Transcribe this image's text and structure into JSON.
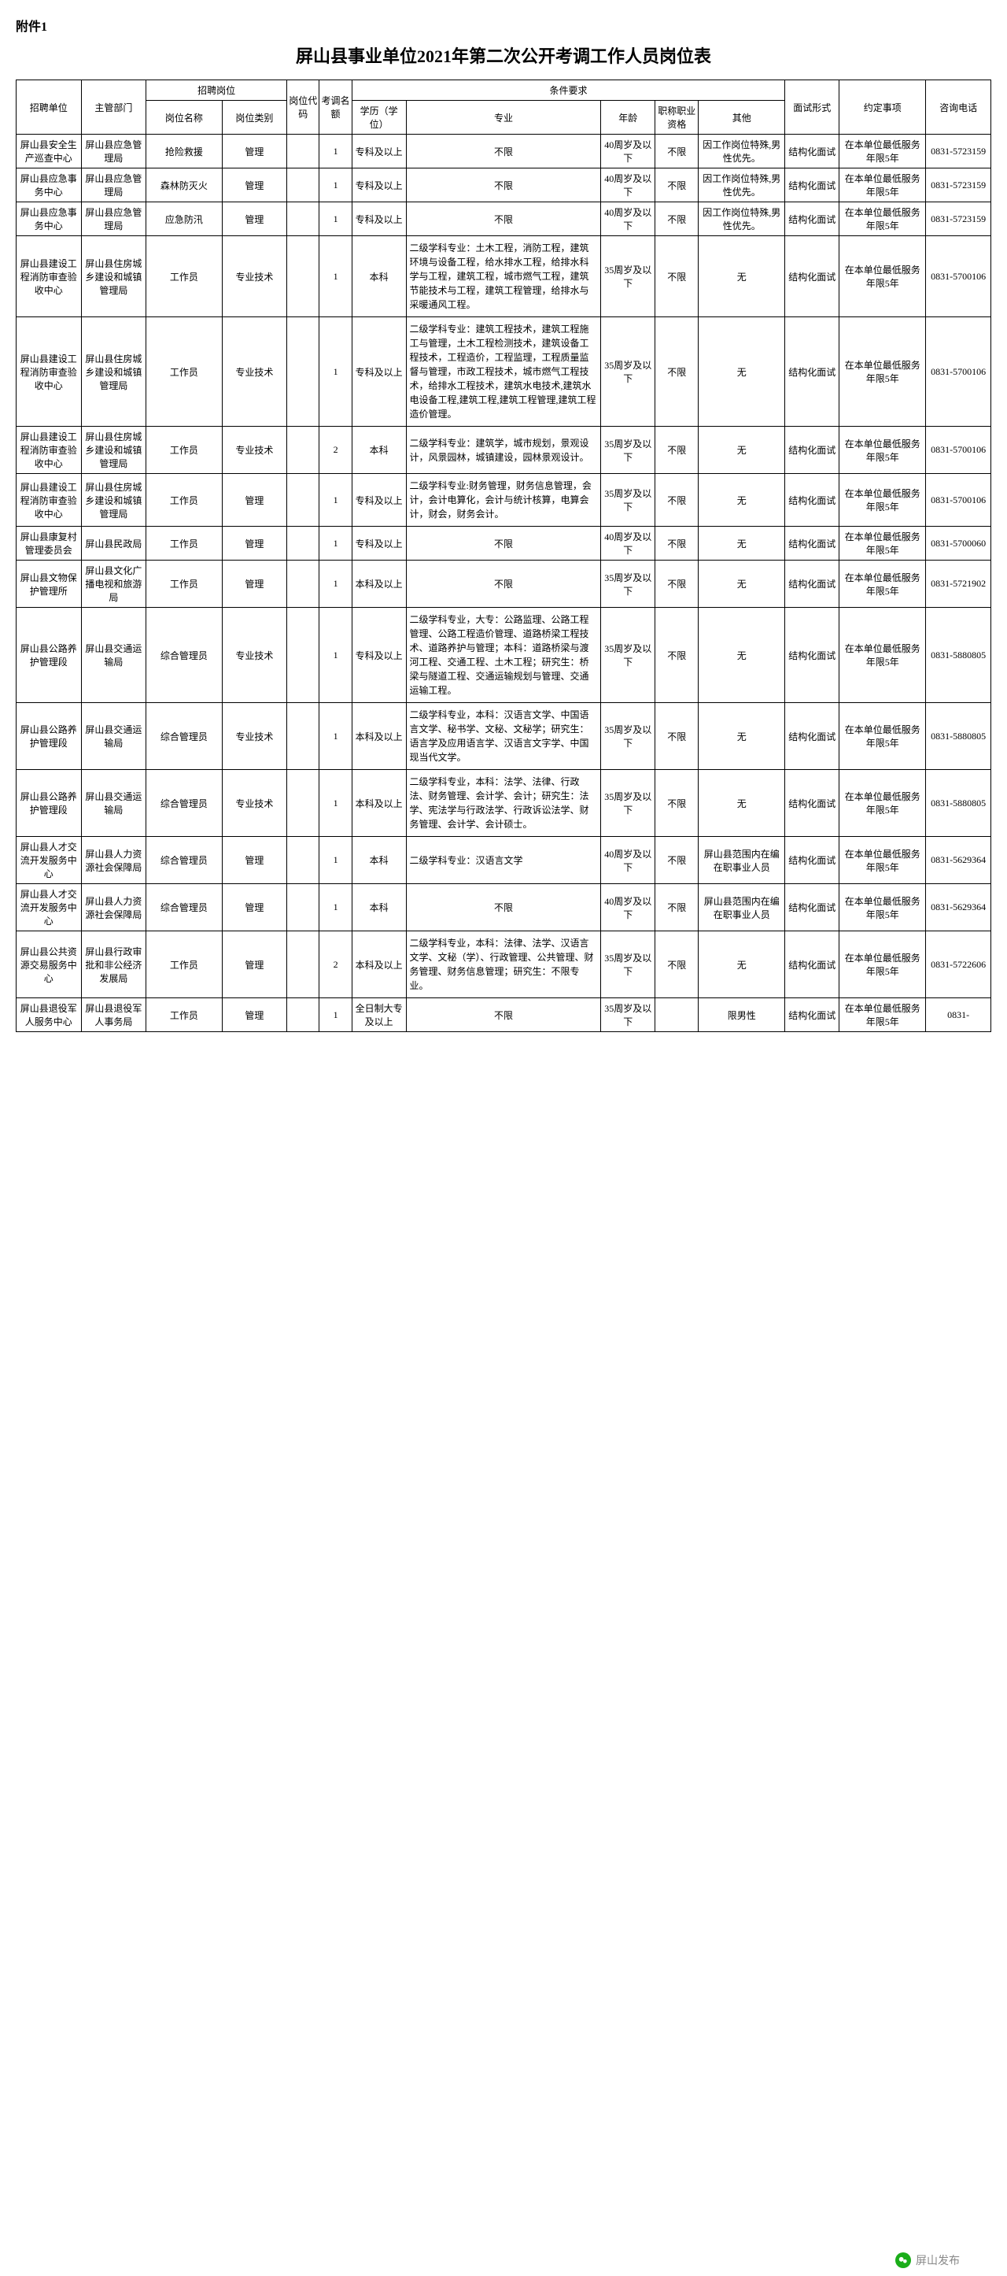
{
  "attachment_label": "附件1",
  "title": "屏山县事业单位2021年第二次公开考调工作人员岗位表",
  "headers": {
    "unit": "招聘单位",
    "dept": "主管部门",
    "recruit": "招聘岗位",
    "posname": "岗位名称",
    "postype": "岗位类别",
    "poscode": "岗位代码",
    "quota": "考调名额",
    "req": "条件要求",
    "edu": "学历（学位）",
    "major": "专业",
    "age": "年龄",
    "title": "职称职业资格",
    "other": "其他",
    "interview": "面试形式",
    "agree": "约定事项",
    "phone": "咨询电话"
  },
  "rows": [
    {
      "unit": "屏山县安全生产巡查中心",
      "dept": "屏山县应急管理局",
      "posname": "抢险救援",
      "postype": "管理",
      "poscode": "",
      "quota": "1",
      "edu": "专科及以上",
      "major": "不限",
      "age": "40周岁及以下",
      "title": "不限",
      "other": "因工作岗位特殊,男性优先。",
      "interview": "结构化面试",
      "agree": "在本单位最低服务年限5年",
      "phone": "0831-5723159"
    },
    {
      "unit": "屏山县应急事务中心",
      "dept": "屏山县应急管理局",
      "posname": "森林防灭火",
      "postype": "管理",
      "poscode": "",
      "quota": "1",
      "edu": "专科及以上",
      "major": "不限",
      "age": "40周岁及以下",
      "title": "不限",
      "other": "因工作岗位特殊,男性优先。",
      "interview": "结构化面试",
      "agree": "在本单位最低服务年限5年",
      "phone": "0831-5723159"
    },
    {
      "unit": "屏山县应急事务中心",
      "dept": "屏山县应急管理局",
      "posname": "应急防汛",
      "postype": "管理",
      "poscode": "",
      "quota": "1",
      "edu": "专科及以上",
      "major": "不限",
      "age": "40周岁及以下",
      "title": "不限",
      "other": "因工作岗位特殊,男性优先。",
      "interview": "结构化面试",
      "agree": "在本单位最低服务年限5年",
      "phone": "0831-5723159"
    },
    {
      "unit": "屏山县建设工程消防审查验收中心",
      "dept": "屏山县住房城乡建设和城镇管理局",
      "posname": "工作员",
      "postype": "专业技术",
      "poscode": "",
      "quota": "1",
      "edu": "本科",
      "major": "二级学科专业：土木工程，消防工程，建筑环境与设备工程，给水排水工程，给排水科学与工程，建筑工程，城市燃气工程，建筑节能技术与工程，建筑工程管理，给排水与采暖通风工程。",
      "age": "35周岁及以下",
      "title": "不限",
      "other": "无",
      "interview": "结构化面试",
      "agree": "在本单位最低服务年限5年",
      "phone": "0831-5700106"
    },
    {
      "unit": "屏山县建设工程消防审查验收中心",
      "dept": "屏山县住房城乡建设和城镇管理局",
      "posname": "工作员",
      "postype": "专业技术",
      "poscode": "",
      "quota": "1",
      "edu": "专科及以上",
      "major": "二级学科专业：建筑工程技术，建筑工程施工与管理，土木工程检测技术，建筑设备工程技术，工程造价，工程监理，工程质量监督与管理，市政工程技术，城市燃气工程技术，给排水工程技术，建筑水电技术,建筑水电设备工程,建筑工程,建筑工程管理,建筑工程造价管理。",
      "age": "35周岁及以下",
      "title": "不限",
      "other": "无",
      "interview": "结构化面试",
      "agree": "在本单位最低服务年限5年",
      "phone": "0831-5700106"
    },
    {
      "unit": "屏山县建设工程消防审查验收中心",
      "dept": "屏山县住房城乡建设和城镇管理局",
      "posname": "工作员",
      "postype": "专业技术",
      "poscode": "",
      "quota": "2",
      "edu": "本科",
      "major": "二级学科专业：建筑学，城市规划，景观设计，风景园林，城镇建设，园林景观设计。",
      "age": "35周岁及以下",
      "title": "不限",
      "other": "无",
      "interview": "结构化面试",
      "agree": "在本单位最低服务年限5年",
      "phone": "0831-5700106"
    },
    {
      "unit": "屏山县建设工程消防审查验收中心",
      "dept": "屏山县住房城乡建设和城镇管理局",
      "posname": "工作员",
      "postype": "管理",
      "poscode": "",
      "quota": "1",
      "edu": "专科及以上",
      "major": "二级学科专业:财务管理，财务信息管理，会计，会计电算化，会计与统计核算，电算会计，财会，财务会计。",
      "age": "35周岁及以下",
      "title": "不限",
      "other": "无",
      "interview": "结构化面试",
      "agree": "在本单位最低服务年限5年",
      "phone": "0831-5700106"
    },
    {
      "unit": "屏山县康复村管理委员会",
      "dept": "屏山县民政局",
      "posname": "工作员",
      "postype": "管理",
      "poscode": "",
      "quota": "1",
      "edu": "专科及以上",
      "major": "不限",
      "age": "40周岁及以下",
      "title": "不限",
      "other": "无",
      "interview": "结构化面试",
      "agree": "在本单位最低服务年限5年",
      "phone": "0831-5700060"
    },
    {
      "unit": "屏山县文物保护管理所",
      "dept": "屏山县文化广播电视和旅游局",
      "posname": "工作员",
      "postype": "管理",
      "poscode": "",
      "quota": "1",
      "edu": "本科及以上",
      "major": "不限",
      "age": "35周岁及以下",
      "title": "不限",
      "other": "无",
      "interview": "结构化面试",
      "agree": "在本单位最低服务年限5年",
      "phone": "0831-5721902"
    },
    {
      "unit": "屏山县公路养护管理段",
      "dept": "屏山县交通运输局",
      "posname": "综合管理员",
      "postype": "专业技术",
      "poscode": "",
      "quota": "1",
      "edu": "专科及以上",
      "major": "二级学科专业，大专：公路监理、公路工程管理、公路工程造价管理、道路桥梁工程技术、道路养护与管理；本科：道路桥梁与渡河工程、交通工程、土木工程；研究生：桥梁与隧道工程、交通运输规划与管理、交通运输工程。",
      "age": "35周岁及以下",
      "title": "不限",
      "other": "无",
      "interview": "结构化面试",
      "agree": "在本单位最低服务年限5年",
      "phone": "0831-5880805"
    },
    {
      "unit": "屏山县公路养护管理段",
      "dept": "屏山县交通运输局",
      "posname": "综合管理员",
      "postype": "专业技术",
      "poscode": "",
      "quota": "1",
      "edu": "本科及以上",
      "major": "二级学科专业，本科：汉语言文学、中国语言文学、秘书学、文秘、文秘学；研究生：语言学及应用语言学、汉语言文字学、中国现当代文学。",
      "age": "35周岁及以下",
      "title": "不限",
      "other": "无",
      "interview": "结构化面试",
      "agree": "在本单位最低服务年限5年",
      "phone": "0831-5880805"
    },
    {
      "unit": "屏山县公路养护管理段",
      "dept": "屏山县交通运输局",
      "posname": "综合管理员",
      "postype": "专业技术",
      "poscode": "",
      "quota": "1",
      "edu": "本科及以上",
      "major": "二级学科专业，本科：法学、法律、行政法、财务管理、会计学、会计；研究生：法学、宪法学与行政法学、行政诉讼法学、财务管理、会计学、会计硕士。",
      "age": "35周岁及以下",
      "title": "不限",
      "other": "无",
      "interview": "结构化面试",
      "agree": "在本单位最低服务年限5年",
      "phone": "0831-5880805"
    },
    {
      "unit": "屏山县人才交流开发服务中心",
      "dept": "屏山县人力资源社会保障局",
      "posname": "综合管理员",
      "postype": "管理",
      "poscode": "",
      "quota": "1",
      "edu": "本科",
      "major": "二级学科专业：汉语言文学",
      "age": "40周岁及以下",
      "title": "不限",
      "other": "屏山县范围内在编在职事业人员",
      "interview": "结构化面试",
      "agree": "在本单位最低服务年限5年",
      "phone": "0831-5629364"
    },
    {
      "unit": "屏山县人才交流开发服务中心",
      "dept": "屏山县人力资源社会保障局",
      "posname": "综合管理员",
      "postype": "管理",
      "poscode": "",
      "quota": "1",
      "edu": "本科",
      "major": "不限",
      "age": "40周岁及以下",
      "title": "不限",
      "other": "屏山县范围内在编在职事业人员",
      "interview": "结构化面试",
      "agree": "在本单位最低服务年限5年",
      "phone": "0831-5629364"
    },
    {
      "unit": "屏山县公共资源交易服务中心",
      "dept": "屏山县行政审批和非公经济发展局",
      "posname": "工作员",
      "postype": "管理",
      "poscode": "",
      "quota": "2",
      "edu": "本科及以上",
      "major": "二级学科专业，本科：法律、法学、汉语言文学、文秘（学）、行政管理、公共管理、财务管理、财务信息管理；研究生：不限专业。",
      "age": "35周岁及以下",
      "title": "不限",
      "other": "无",
      "interview": "结构化面试",
      "agree": "在本单位最低服务年限5年",
      "phone": "0831-5722606"
    },
    {
      "unit": "屏山县退役军人服务中心",
      "dept": "屏山县退役军人事务局",
      "posname": "工作员",
      "postype": "管理",
      "poscode": "",
      "quota": "1",
      "edu": "全日制大专及以上",
      "major": "不限",
      "age": "35周岁及以下",
      "title": "",
      "other": "限男性",
      "interview": "结构化面试",
      "agree": "在本单位最低服务年限5年",
      "phone": "0831-"
    }
  ],
  "watermark": "屏山发布"
}
